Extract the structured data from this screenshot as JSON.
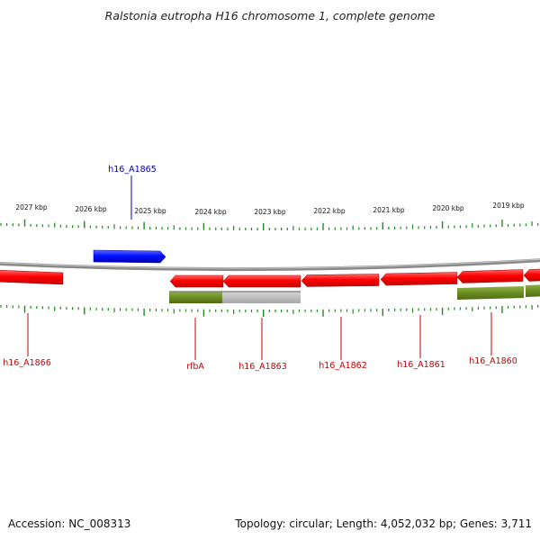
{
  "title": "Ralstonia eutropha H16 chromosome 1, complete genome",
  "footer": {
    "accession": "Accession: NC_008313",
    "summary": "Topology: circular; Length: 4,052,032 bp; Genes: 3,711"
  },
  "colors": {
    "forward_gene": "#0000ee",
    "reverse_gene": "#ee0000",
    "cds_track": "#6b8e23",
    "backbone": "#888888",
    "tick": "#1f8a1f",
    "feature_label_forward": "#0000aa",
    "feature_label_reverse": "#cc0000"
  },
  "scale_labels": [
    "2027 kbp",
    "2026 kbp",
    "2025 kbp",
    "2024 kbp",
    "2023 kbp",
    "2022 kbp",
    "2021 kbp",
    "2020 kbp",
    "2019 kbp"
  ],
  "features": [
    {
      "label": "h16_A1865",
      "strand": "forward"
    },
    {
      "label": "h16_A1866",
      "strand": "reverse"
    },
    {
      "label": "rfbA",
      "strand": "reverse"
    },
    {
      "label": "h16_A1863",
      "strand": "reverse"
    },
    {
      "label": "h16_A1862",
      "strand": "reverse"
    },
    {
      "label": "h16_A1861",
      "strand": "reverse"
    },
    {
      "label": "h16_A1860",
      "strand": "reverse"
    }
  ]
}
